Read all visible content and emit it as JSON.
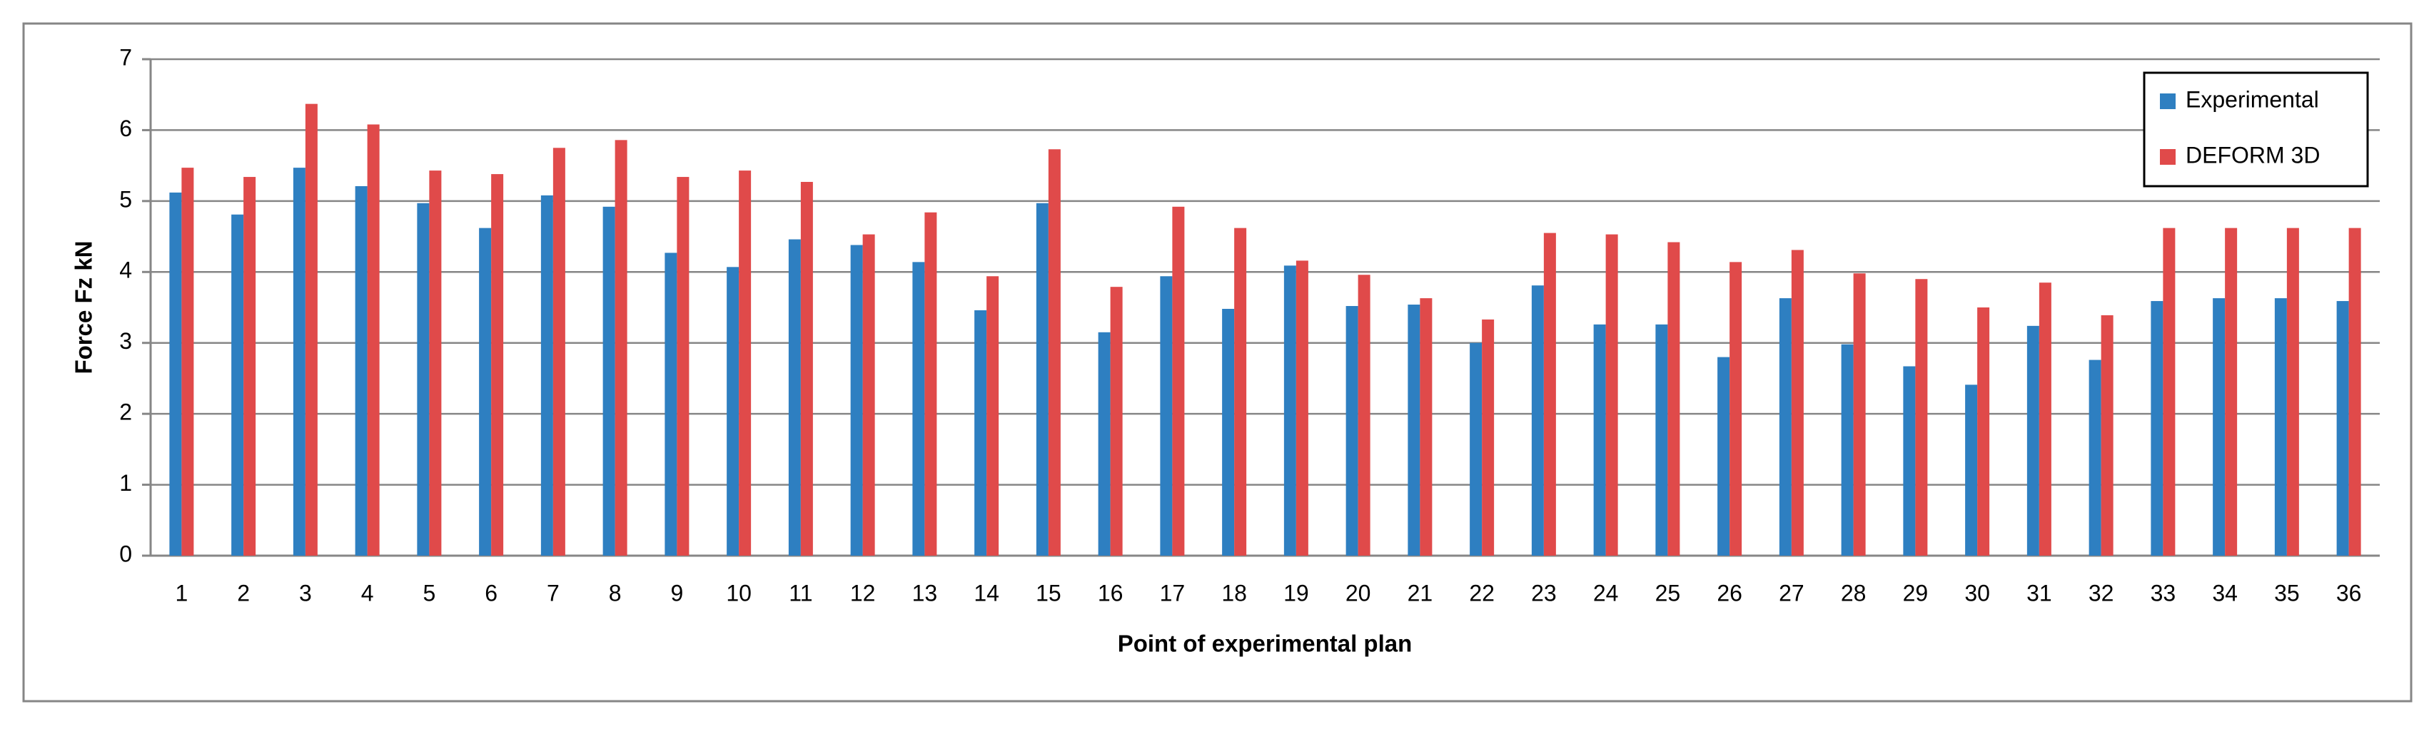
{
  "chart_data": {
    "type": "bar",
    "x_label": "Point of experimental plan",
    "y_label": "Force Fz kN",
    "categories": [
      "1",
      "2",
      "3",
      "4",
      "5",
      "6",
      "7",
      "8",
      "9",
      "10",
      "11",
      "12",
      "13",
      "14",
      "15",
      "16",
      "17",
      "18",
      "19",
      "20",
      "21",
      "22",
      "23",
      "24",
      "25",
      "26",
      "27",
      "28",
      "29",
      "30",
      "31",
      "32",
      "33",
      "34",
      "35",
      "36"
    ],
    "series": [
      {
        "name": "Experimental",
        "color": "#2e7fc1",
        "values": [
          5.12,
          4.81,
          5.47,
          5.21,
          4.97,
          4.62,
          5.08,
          4.92,
          4.27,
          4.07,
          4.46,
          4.38,
          4.14,
          3.46,
          4.97,
          3.15,
          3.94,
          3.48,
          4.09,
          3.52,
          3.54,
          3.0,
          3.81,
          3.26,
          3.26,
          2.8,
          3.63,
          2.98,
          2.67,
          2.41,
          3.24,
          2.76,
          3.59,
          3.63,
          3.63,
          3.59
        ]
      },
      {
        "name": "DEFORM 3D",
        "color": "#e04a4a",
        "values": [
          5.47,
          5.34,
          6.37,
          6.08,
          5.43,
          5.38,
          5.75,
          5.86,
          5.34,
          5.43,
          5.27,
          4.53,
          4.84,
          3.94,
          5.73,
          3.79,
          4.92,
          4.62,
          4.16,
          3.96,
          3.63,
          3.33,
          4.55,
          4.53,
          4.42,
          4.14,
          4.31,
          3.98,
          3.9,
          3.5,
          3.85,
          3.39,
          4.62,
          4.62,
          4.62,
          4.62
        ]
      }
    ],
    "ylim": [
      0,
      7
    ],
    "yticks": [
      0,
      1,
      2,
      3,
      4,
      5,
      6,
      7
    ],
    "grid": true,
    "legend": "top-right"
  }
}
